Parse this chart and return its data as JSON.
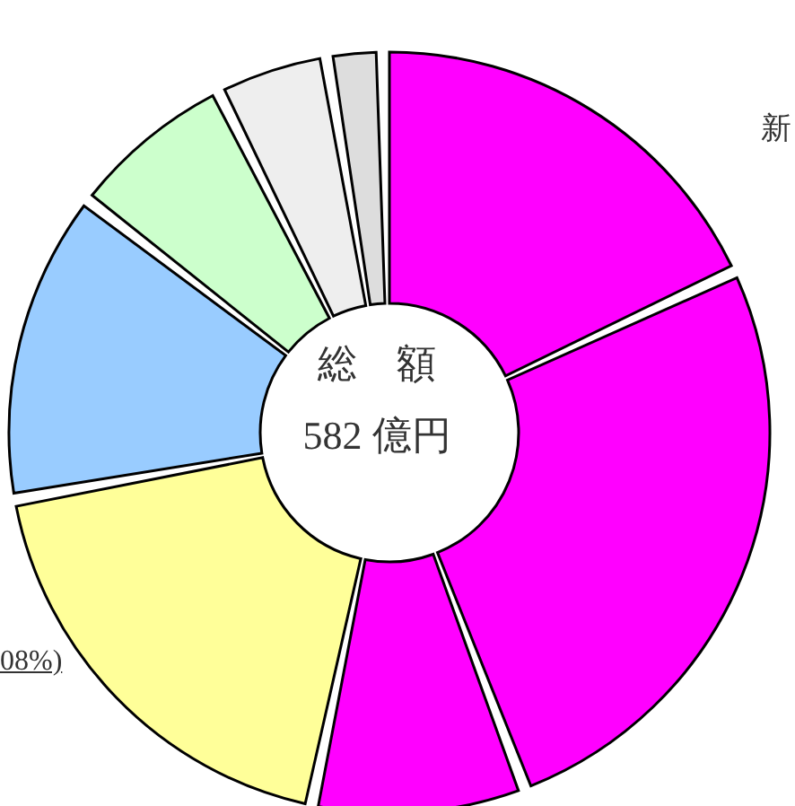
{
  "chart_data": {
    "type": "donut",
    "categories": [
      null,
      null,
      null,
      null,
      null,
      null,
      null,
      null
    ],
    "values": [
      18.6,
      26.8,
      8.9,
      19.2,
      13.3,
      6.9,
      4.4,
      1.9
    ],
    "colors": [
      "#ff00ff",
      "#ff00ff",
      "#ff00ff",
      "#ffff99",
      "#99ccff",
      "#ccffcc",
      "#eeeeee",
      "#dddddd"
    ],
    "annotations": [
      "総　額",
      "582 億円",
      "新",
      "08%)"
    ],
    "legend": false
  }
}
